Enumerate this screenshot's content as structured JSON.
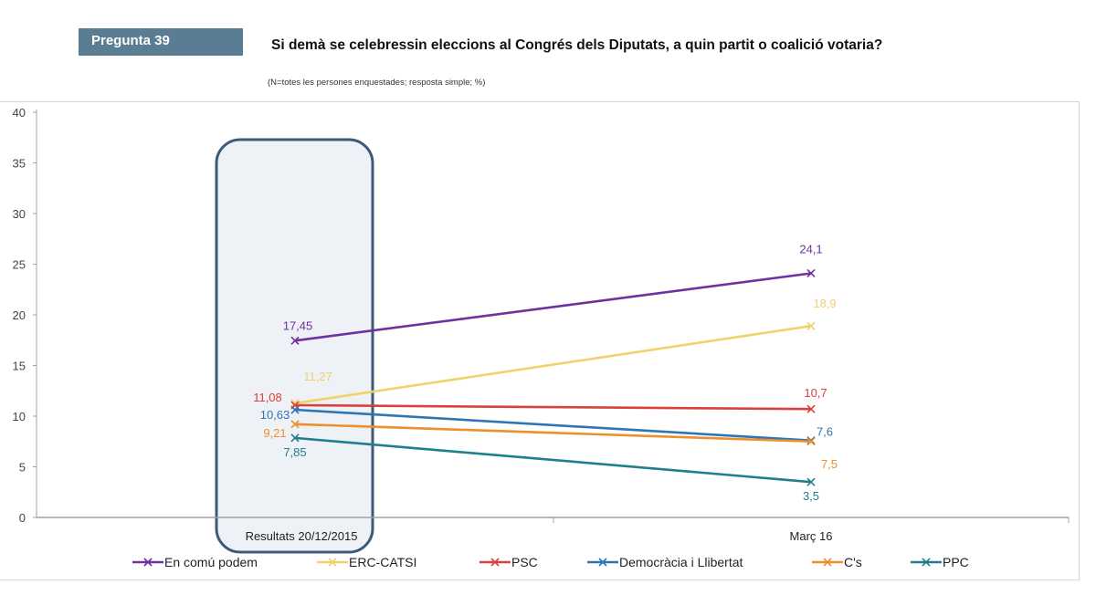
{
  "header": {
    "badge": "Pregunta 39",
    "title": "Si demà se celebressin eleccions al Congrés dels Diputats, a quin partit o coalició votaria?",
    "subtitle": "(N=totes les persones enquestades; resposta simple; %)"
  },
  "chart_data": {
    "type": "line",
    "title": "Si demà se celebressin eleccions al Congrés dels Diputats, a quin partit o coalició votaria?",
    "subtitle": "(N=totes les persones enquestades; resposta simple; %)",
    "xlabel": "",
    "ylabel": "",
    "categories": [
      "Resultats 20/12/2015",
      "Març 16"
    ],
    "ylim": [
      0,
      40
    ],
    "yticks": [
      0,
      5,
      10,
      15,
      20,
      25,
      30,
      35,
      40
    ],
    "grid": false,
    "legend_position": "bottom",
    "highlight_category": "Resultats 20/12/2015",
    "series": [
      {
        "name": "En comú podem",
        "color": "#7030a0",
        "values": [
          17.45,
          24.1
        ],
        "labels": [
          "17,45",
          "24,1"
        ]
      },
      {
        "name": "ERC-CATSI",
        "color": "#f2d16b",
        "values": [
          11.27,
          18.9
        ],
        "labels": [
          "11,27",
          "18,9"
        ]
      },
      {
        "name": "PSC",
        "color": "#d9413a",
        "values": [
          11.08,
          10.7
        ],
        "labels": [
          "11,08",
          "10,7"
        ]
      },
      {
        "name": "Democràcia i Llibertat",
        "color": "#2e75b6",
        "values": [
          10.63,
          7.6
        ],
        "labels": [
          "10,63",
          "7,6"
        ]
      },
      {
        "name": "C's",
        "color": "#ed8f2a",
        "values": [
          9.21,
          7.5
        ],
        "labels": [
          "9,21",
          "7,5"
        ]
      },
      {
        "name": "PPC",
        "color": "#1f7f8c",
        "values": [
          7.85,
          3.5
        ],
        "labels": [
          "7,85",
          "3,5"
        ]
      }
    ]
  }
}
